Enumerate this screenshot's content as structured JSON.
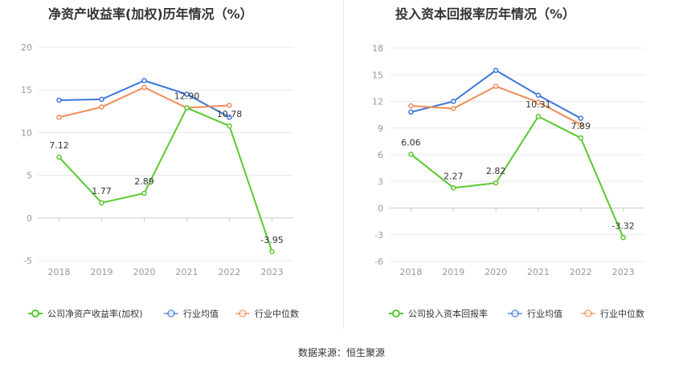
{
  "titles": {
    "left": "净资产收益率(加权)历年情况（%）",
    "right": "投入资本回报率历年情况（%）"
  },
  "source": "数据来源：恒生聚源",
  "chart_data": [
    {
      "type": "line",
      "title": "净资产收益率(加权)历年情况（%）",
      "x": [
        "2018",
        "2019",
        "2020",
        "2021",
        "2022",
        "2023"
      ],
      "ylim": [
        -5,
        20
      ],
      "yticks": [
        -5,
        0,
        5,
        10,
        15,
        20
      ],
      "grid": true,
      "legend_position": "bottom",
      "series": [
        {
          "name": "公司净资产收益率(加权)",
          "color": "#5ac82f",
          "labeled": true,
          "values": [
            7.12,
            1.77,
            2.89,
            12.9,
            10.78,
            -3.95
          ],
          "labels": [
            "7.12",
            "1.77",
            "2.89",
            "12.90",
            "10.78",
            "-3.95"
          ]
        },
        {
          "name": "行业均值",
          "color": "#3b74db",
          "values": [
            13.8,
            13.9,
            16.1,
            14.5,
            11.8,
            null
          ]
        },
        {
          "name": "行业中位数",
          "color": "#f08c5a",
          "values": [
            11.8,
            13.0,
            15.3,
            12.9,
            13.2,
            null
          ]
        }
      ]
    },
    {
      "type": "line",
      "title": "投入资本回报率历年情况（%）",
      "x": [
        "2018",
        "2019",
        "2020",
        "2021",
        "2022",
        "2023"
      ],
      "ylim": [
        -6,
        18
      ],
      "yticks": [
        -6,
        -3,
        0,
        3,
        6,
        9,
        12,
        15,
        18
      ],
      "grid": true,
      "legend_position": "bottom",
      "series": [
        {
          "name": "公司投入资本回报率",
          "color": "#5ac82f",
          "labeled": true,
          "values": [
            6.06,
            2.27,
            2.82,
            10.31,
            7.89,
            -3.32
          ],
          "labels": [
            "6.06",
            "2.27",
            "2.82",
            "10.31",
            "7.89",
            "-3.32"
          ]
        },
        {
          "name": "行业均值",
          "color": "#3b74db",
          "values": [
            10.8,
            12.0,
            15.5,
            12.7,
            10.1,
            null
          ]
        },
        {
          "name": "行业中位数",
          "color": "#f08c5a",
          "values": [
            11.5,
            11.2,
            13.7,
            11.9,
            9.4,
            null
          ]
        }
      ]
    }
  ]
}
